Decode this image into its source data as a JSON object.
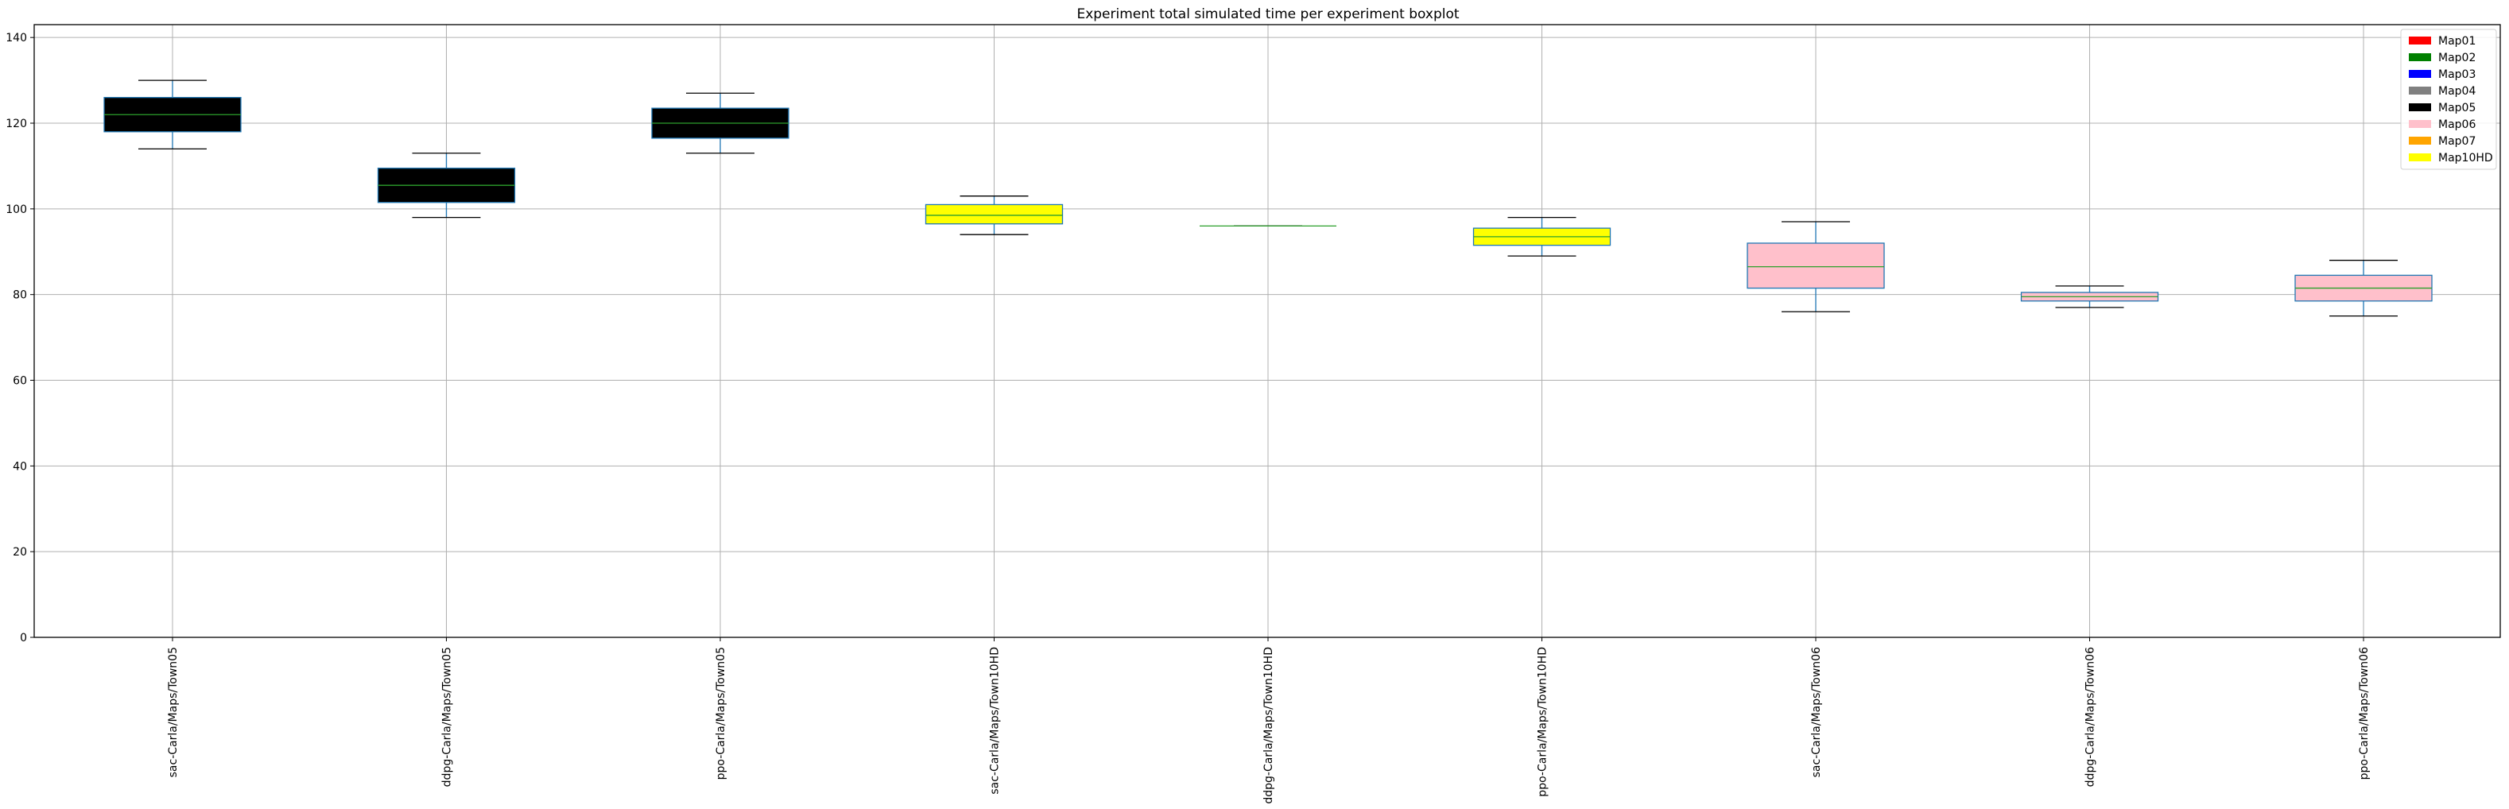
{
  "chart_data": {
    "type": "boxplot",
    "title": "Experiment total simulated time per experiment boxplot",
    "xlabel": "",
    "ylabel": "",
    "ylim": [
      0,
      143
    ],
    "yticks": [
      0,
      20,
      40,
      60,
      80,
      100,
      120,
      140
    ],
    "grid": true,
    "legend_position": "top-right",
    "legend": [
      {
        "label": "Map01",
        "color": "#ff0000"
      },
      {
        "label": "Map02",
        "color": "#008000"
      },
      {
        "label": "Map03",
        "color": "#0000ff"
      },
      {
        "label": "Map04",
        "color": "#808080"
      },
      {
        "label": "Map05",
        "color": "#000000"
      },
      {
        "label": "Map06",
        "color": "#ffc0cb"
      },
      {
        "label": "Map07",
        "color": "#ffa500"
      },
      {
        "label": "Map10HD",
        "color": "#ffff00"
      }
    ],
    "categories": [
      "sac-Carla/Maps/Town05",
      "ddpg-Carla/Maps/Town05",
      "ppo-Carla/Maps/Town05",
      "sac-Carla/Maps/Town10HD",
      "ddpg-Carla/Maps/Town10HD",
      "ppo-Carla/Maps/Town10HD",
      "sac-Carla/Maps/Town06",
      "ddpg-Carla/Maps/Town06",
      "ppo-Carla/Maps/Town06"
    ],
    "boxes": [
      {
        "whisker_low": 114,
        "q1": 118,
        "median": 122,
        "q3": 126,
        "whisker_high": 130,
        "fill": "#000000"
      },
      {
        "whisker_low": 98,
        "q1": 101.5,
        "median": 105.5,
        "q3": 109.5,
        "whisker_high": 113,
        "fill": "#000000"
      },
      {
        "whisker_low": 113,
        "q1": 116.5,
        "median": 120,
        "q3": 123.5,
        "whisker_high": 127,
        "fill": "#000000"
      },
      {
        "whisker_low": 94,
        "q1": 96.5,
        "median": 98.5,
        "q3": 101,
        "whisker_high": 103,
        "fill": "#ffff00"
      },
      {
        "whisker_low": 96,
        "q1": 96,
        "median": 96,
        "q3": 96,
        "whisker_high": 96,
        "fill": "#ffff00"
      },
      {
        "whisker_low": 89,
        "q1": 91.5,
        "median": 93.5,
        "q3": 95.5,
        "whisker_high": 98,
        "fill": "#ffff00"
      },
      {
        "whisker_low": 76,
        "q1": 81.5,
        "median": 86.5,
        "q3": 92,
        "whisker_high": 97,
        "fill": "#ffc0cb"
      },
      {
        "whisker_low": 77,
        "q1": 78.5,
        "median": 79.5,
        "q3": 80.5,
        "whisker_high": 82,
        "fill": "#ffc0cb"
      },
      {
        "whisker_low": 75,
        "q1": 78.5,
        "median": 81.5,
        "q3": 84.5,
        "whisker_high": 88,
        "fill": "#ffc0cb"
      }
    ],
    "colors": {
      "box_edge": "#1f77b4",
      "median_line": "#2ca02c",
      "whisker": "#000000",
      "grid": "#b0b0b0"
    }
  }
}
